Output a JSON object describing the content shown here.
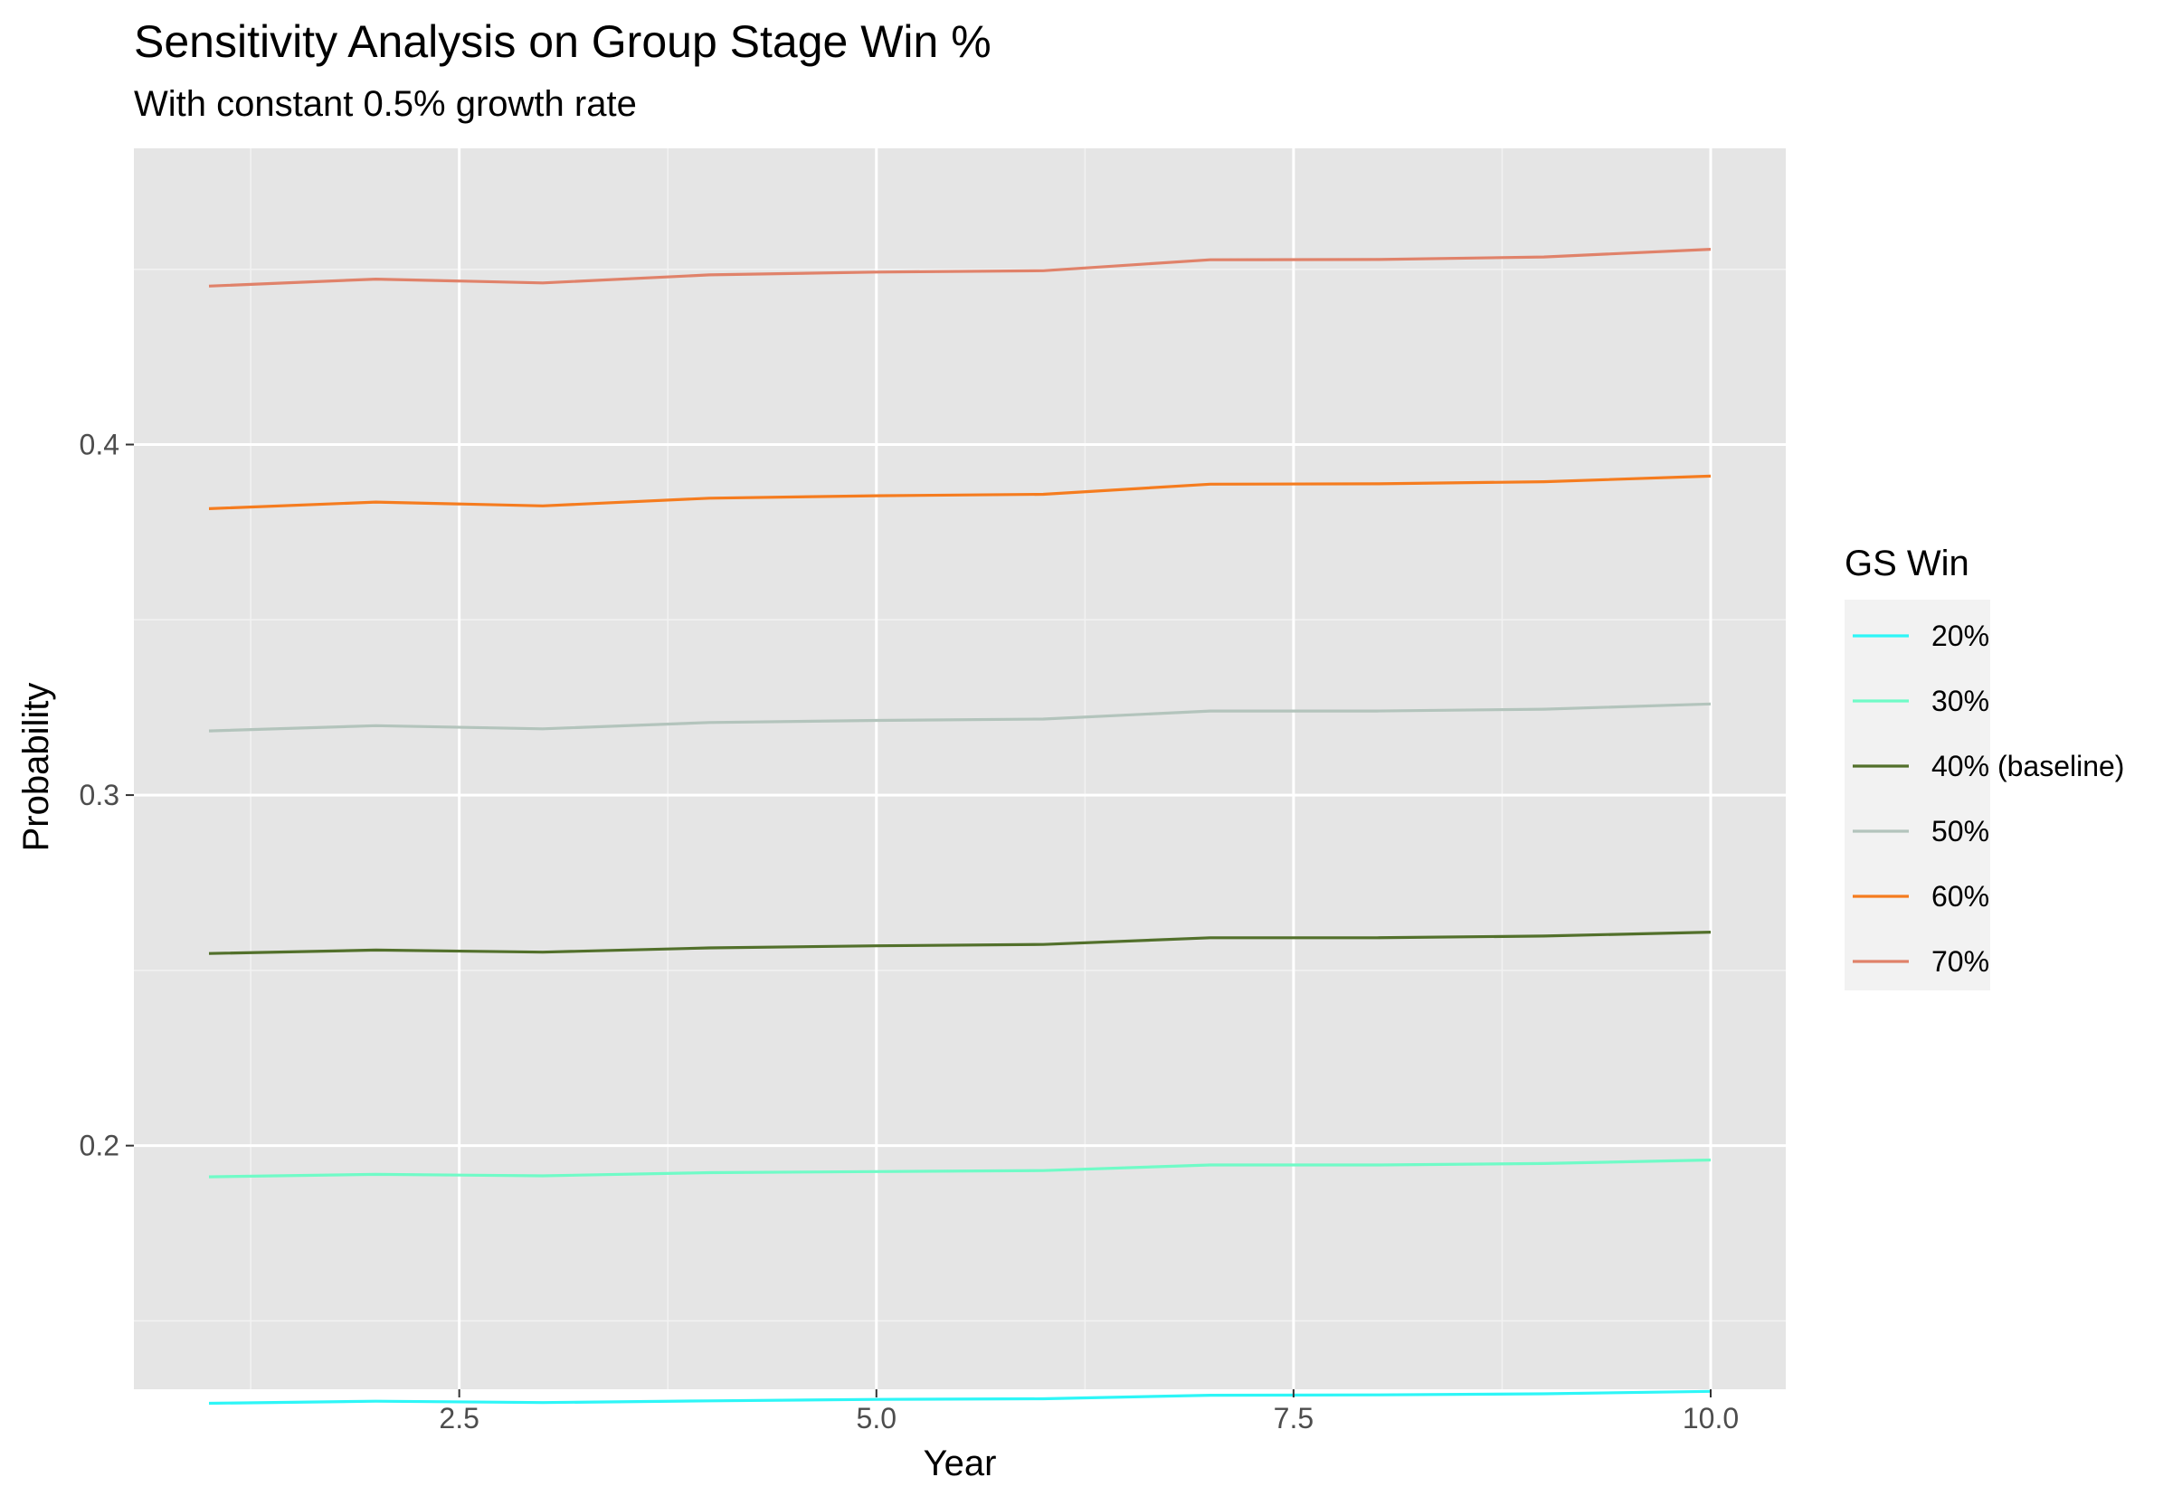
{
  "chart_data": {
    "type": "line",
    "title": "Sensitivity Analysis on Group Stage Win %",
    "subtitle": "With constant 0.5% growth rate",
    "xlabel": "Year",
    "ylabel": "Probability",
    "xlim": [
      0.55,
      10.45
    ],
    "ylim": [
      0.1305,
      0.4845
    ],
    "x_ticks": [
      2.5,
      5.0,
      7.5,
      10.0
    ],
    "x_tick_labels": [
      "2.5",
      "5.0",
      "7.5",
      "10.0"
    ],
    "x_minor": [
      1.25,
      3.75,
      6.25,
      8.75
    ],
    "y_ticks": [
      0.2,
      0.3,
      0.4
    ],
    "y_tick_labels": [
      "0.2",
      "0.3",
      "0.4"
    ],
    "y_minor": [
      0.15,
      0.25,
      0.35,
      0.45
    ],
    "grid": true,
    "legend_title": "GS Win",
    "legend_position": "right",
    "x": [
      1,
      2,
      3,
      4,
      5,
      6,
      7,
      8,
      9,
      10
    ],
    "series": [
      {
        "name": "20%",
        "color": "#2ef6f7",
        "values": [
          0.1265,
          0.1271,
          0.1267,
          0.1272,
          0.1276,
          0.1278,
          0.1288,
          0.1289,
          0.1292,
          0.1299
        ]
      },
      {
        "name": "30%",
        "color": "#70fbc7",
        "values": [
          0.1911,
          0.1918,
          0.1914,
          0.1923,
          0.1926,
          0.1929,
          0.1945,
          0.1945,
          0.1949,
          0.1959
        ]
      },
      {
        "name": "40% (baseline)",
        "color": "#52702b",
        "values": [
          0.2548,
          0.2558,
          0.2552,
          0.2564,
          0.257,
          0.2574,
          0.2593,
          0.2593,
          0.2598,
          0.2609
        ]
      },
      {
        "name": "50%",
        "color": "#b3c4bc",
        "values": [
          0.3183,
          0.3198,
          0.3189,
          0.3207,
          0.3213,
          0.3217,
          0.324,
          0.324,
          0.3245,
          0.326
        ]
      },
      {
        "name": "60%",
        "color": "#f57c1f",
        "values": [
          0.3817,
          0.3836,
          0.3825,
          0.3847,
          0.3854,
          0.3858,
          0.3887,
          0.3888,
          0.3894,
          0.391
        ]
      },
      {
        "name": "70%",
        "color": "#e0826a",
        "values": [
          0.4452,
          0.4472,
          0.4461,
          0.4484,
          0.4492,
          0.4496,
          0.4527,
          0.4528,
          0.4535,
          0.4557
        ]
      }
    ]
  }
}
